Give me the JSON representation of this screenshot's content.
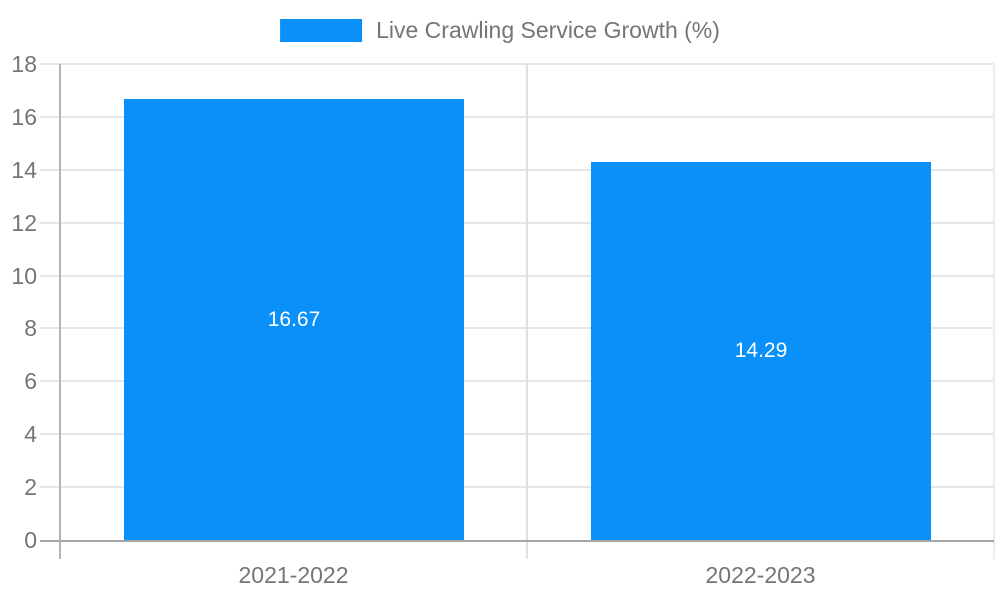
{
  "chart_data": {
    "type": "bar",
    "title": "",
    "categories": [
      "2021-2022",
      "2022-2023"
    ],
    "series": [
      {
        "name": "Live Crawling Service Growth (%)",
        "values": [
          16.67,
          14.29
        ],
        "color": "#0990f9"
      }
    ],
    "bar_value_labels": [
      "16.67",
      "14.29"
    ],
    "xlabel": "",
    "ylabel": "",
    "ylim": [
      0,
      18
    ],
    "yticks": [
      0,
      2,
      4,
      6,
      8,
      10,
      12,
      14,
      16,
      18
    ],
    "grid": true,
    "legend_position": "top"
  },
  "legend": {
    "label": "Live Crawling Service Growth (%)",
    "swatch_color": "#0990f9"
  },
  "colors": {
    "bar": "#0990f9",
    "axis_text": "#757575",
    "bar_label_text": "#ffffff",
    "gridline": "#e6e6e6",
    "category_divider": "#e0e0e0",
    "plot_right_border": "#ececec",
    "y_axis_line": "#b3b3b3",
    "x_baseline": "#a5a5a5",
    "background": "#ffffff"
  }
}
